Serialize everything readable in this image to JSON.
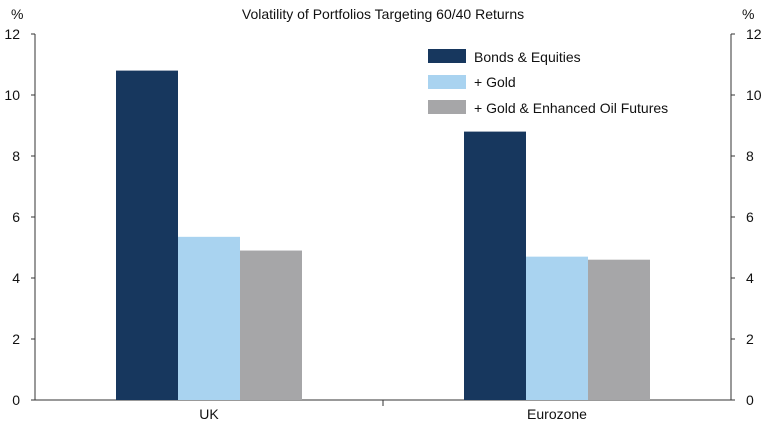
{
  "chart_data": {
    "type": "bar",
    "title": "Volatility of Portfolios Targeting 60/40 Returns",
    "ylabel_left": "%",
    "ylabel_right": "%",
    "categories": [
      "UK",
      "Eurozone"
    ],
    "series": [
      {
        "name": "Bonds & Equities",
        "values": [
          10.8,
          8.8
        ],
        "color": "#17375e"
      },
      {
        "name": "+ Gold",
        "values": [
          5.35,
          4.7
        ],
        "color": "#a9d3f0"
      },
      {
        "name": "+ Gold & Enhanced Oil Futures",
        "values": [
          4.9,
          4.6
        ],
        "color": "#a6a6a8"
      }
    ],
    "ylim": [
      0,
      12
    ],
    "yticks": [
      "0",
      "2",
      "4",
      "6",
      "8",
      "10",
      "12"
    ],
    "grid": false,
    "legend_position": "top-right"
  }
}
